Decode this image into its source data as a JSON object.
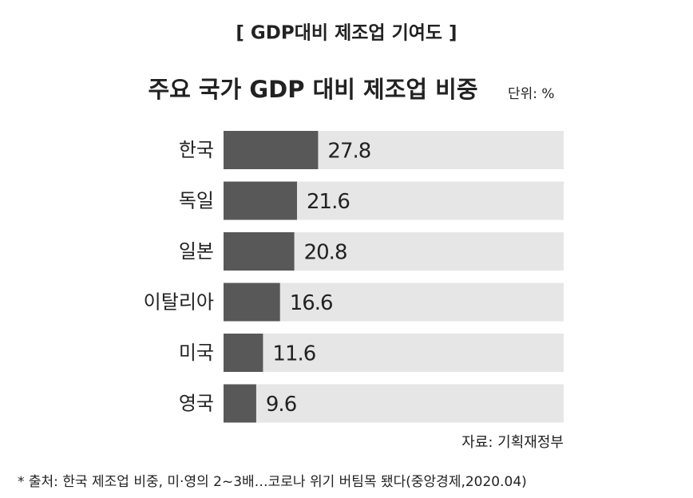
{
  "chart_data": {
    "type": "bar",
    "orientation": "horizontal",
    "header": "[ GDP대비 제조업 기여도 ]",
    "title": "주요 국가 GDP 대비 제조업 비중",
    "unit": "단위: %",
    "categories": [
      "한국",
      "독일",
      "일본",
      "이탈리아",
      "미국",
      "영국"
    ],
    "values": [
      27.8,
      21.6,
      20.8,
      16.6,
      11.6,
      9.6
    ],
    "color": "#585858",
    "xlim": [
      0,
      100
    ],
    "source": "자료: 기획재정부",
    "footnote": "* 출처: 한국 제조업 비중, 미·영의 2~3배…코로나 위기 버팀목 됐다(중앙경제,2020.04)"
  }
}
